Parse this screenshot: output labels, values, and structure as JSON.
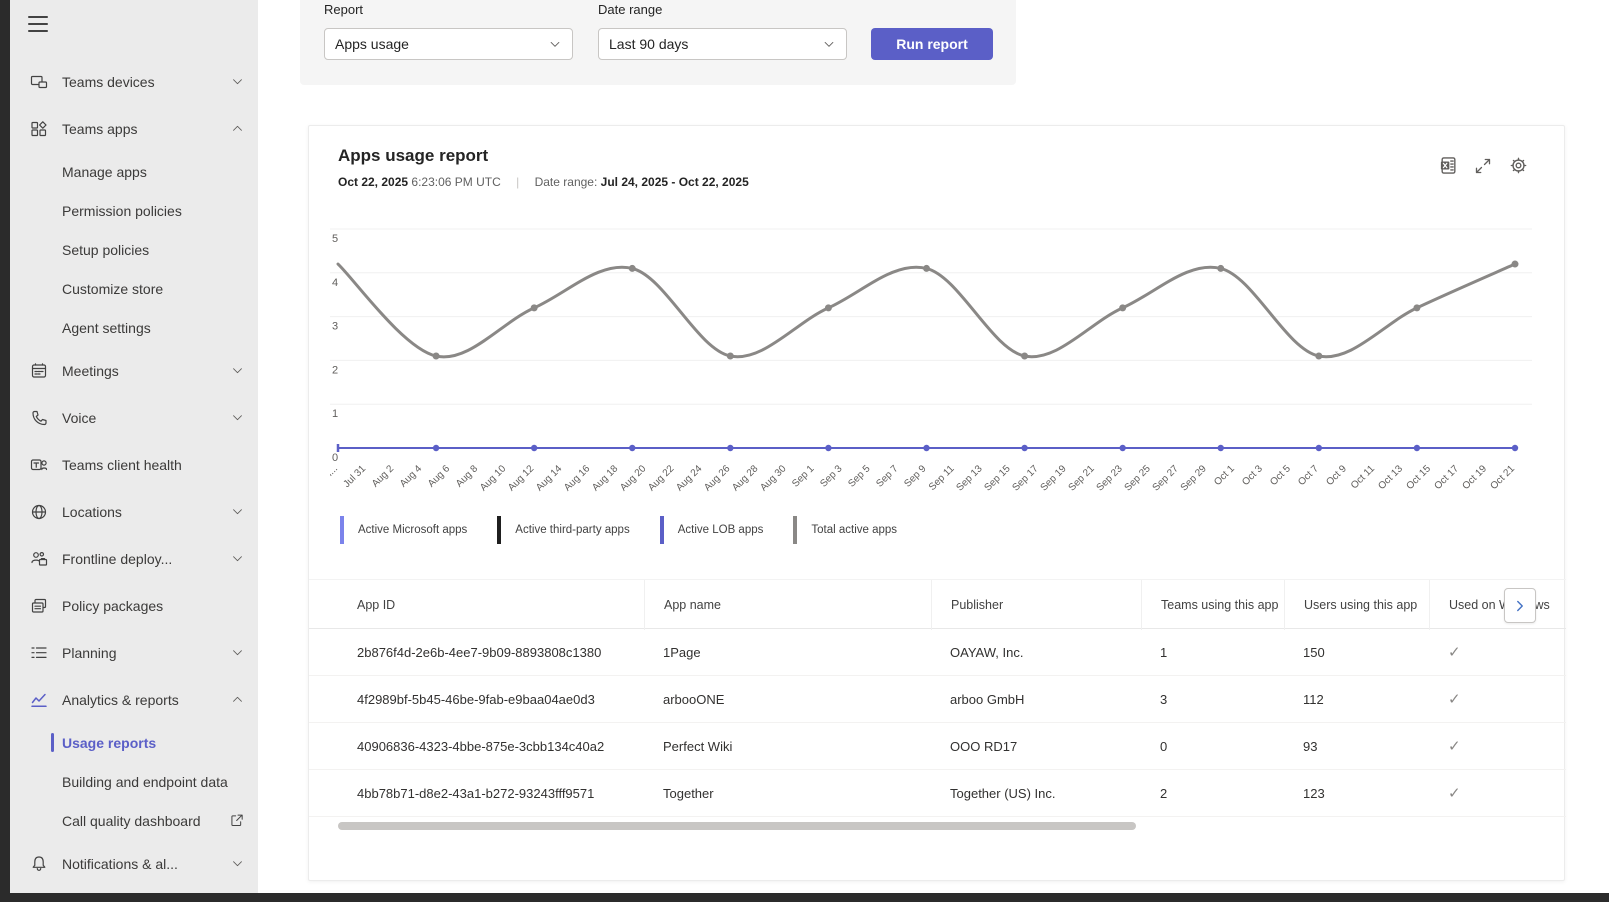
{
  "sidebar": {
    "items": [
      {
        "id": "teams-devices",
        "label": "Teams devices",
        "icon": "devices",
        "chevron": "down"
      },
      {
        "id": "teams-apps",
        "label": "Teams apps",
        "icon": "apps",
        "chevron": "up"
      },
      {
        "id": "manage-apps",
        "label": "Manage apps",
        "sub": true
      },
      {
        "id": "permission-policies",
        "label": "Permission policies",
        "sub": true
      },
      {
        "id": "setup-policies",
        "label": "Setup policies",
        "sub": true
      },
      {
        "id": "customize-store",
        "label": "Customize store",
        "sub": true
      },
      {
        "id": "agent-settings",
        "label": "Agent settings",
        "sub": true
      },
      {
        "id": "meetings",
        "label": "Meetings",
        "icon": "calendar",
        "chevron": "down"
      },
      {
        "id": "voice",
        "label": "Voice",
        "icon": "phone",
        "chevron": "down"
      },
      {
        "id": "teams-client-health",
        "label": "Teams client health",
        "icon": "teams"
      },
      {
        "id": "locations",
        "label": "Locations",
        "icon": "globe",
        "chevron": "down"
      },
      {
        "id": "frontline-deploy",
        "label": "Frontline deploy...",
        "icon": "people",
        "chevron": "down"
      },
      {
        "id": "policy-packages",
        "label": "Policy packages",
        "icon": "layers"
      },
      {
        "id": "planning",
        "label": "Planning",
        "icon": "planning",
        "chevron": "down"
      },
      {
        "id": "analytics-reports",
        "label": "Analytics & reports",
        "icon": "chart",
        "chevron": "up",
        "accent": true
      },
      {
        "id": "usage-reports",
        "label": "Usage reports",
        "sub": true,
        "selected": true
      },
      {
        "id": "building-endpoint-data",
        "label": "Building and endpoint data",
        "sub": true
      },
      {
        "id": "call-quality-dashboard",
        "label": "Call quality dashboard",
        "sub": true,
        "external": true
      },
      {
        "id": "notifications-alerts",
        "label": "Notifications & al...",
        "icon": "bell",
        "chevron": "down"
      }
    ]
  },
  "filters": {
    "report_label": "Report",
    "report_value": "Apps usage",
    "date_range_label": "Date range",
    "date_range_value": "Last 90 days",
    "run_button_label": "Run report"
  },
  "report": {
    "title": "Apps usage report",
    "generated_date": "Oct 22, 2025",
    "generated_time": "6:23:06 PM UTC",
    "date_range_prefix": "Date range:",
    "date_range_value": "Jul 24, 2025 - Oct 22, 2025",
    "toolbar_icons": [
      "excel-export",
      "expand",
      "settings"
    ]
  },
  "chart_data": {
    "type": "line",
    "title": "",
    "xlabel": "",
    "ylabel": "",
    "ylim": [
      0,
      5
    ],
    "y_ticks": [
      0,
      1,
      2,
      3,
      4,
      5
    ],
    "grid": true,
    "legend_position": "bottom",
    "x_tick_labels": [
      "Jul...",
      "Jul 31",
      "Aug 2",
      "Aug 4",
      "Aug 6",
      "Aug 8",
      "Aug 10",
      "Aug 12",
      "Aug 14",
      "Aug 16",
      "Aug 18",
      "Aug 20",
      "Aug 22",
      "Aug 24",
      "Aug 26",
      "Aug 28",
      "Aug 30",
      "Sep 1",
      "Sep 3",
      "Sep 5",
      "Sep 7",
      "Sep 9",
      "Sep 11",
      "Sep 13",
      "Sep 15",
      "Sep 17",
      "Sep 19",
      "Sep 21",
      "Sep 23",
      "Sep 25",
      "Sep 27",
      "Sep 29",
      "Oct 1",
      "Oct 3",
      "Oct 5",
      "Oct 7",
      "Oct 9",
      "Oct 11",
      "Oct 13",
      "Oct 15",
      "Oct 17",
      "Oct 19",
      "Oct 21"
    ],
    "series": [
      {
        "name": "Active Microsoft apps",
        "color": "#7b83eb",
        "values": [
          0,
          0,
          0,
          0,
          0,
          0,
          0,
          0,
          0,
          0,
          0,
          0,
          0
        ]
      },
      {
        "name": "Active third-party apps",
        "color": "#1f1f1f",
        "values": [
          0,
          0,
          0,
          0,
          0,
          0,
          0,
          0,
          0,
          0,
          0,
          0,
          0
        ]
      },
      {
        "name": "Active LOB apps",
        "color": "#5b5fc7",
        "values": [
          0,
          0,
          0,
          0,
          0,
          0,
          0,
          0,
          0,
          0,
          0,
          0,
          0
        ]
      },
      {
        "name": "Total active apps",
        "color": "#8a8886",
        "values": [
          4.2,
          2.1,
          3.2,
          4.1,
          2.1,
          3.2,
          4.1,
          2.1,
          3.2,
          4.1,
          2.1,
          3.2,
          4.2
        ]
      }
    ]
  },
  "table": {
    "columns": [
      "App ID",
      "App name",
      "Publisher",
      "Teams using this app",
      "Users using this app",
      "Used on Windows"
    ],
    "rows": [
      {
        "app_id": "2b876f4d-2e6b-4ee7-9b09-8893808c1380",
        "app_name": "1Page",
        "publisher": "OAYAW, Inc.",
        "teams_using": "1",
        "users_using": "150",
        "used_on_windows": true
      },
      {
        "app_id": "4f2989bf-5b45-46be-9fab-e9baa04ae0d3",
        "app_name": "arbooONE",
        "publisher": "arboo GmbH",
        "teams_using": "3",
        "users_using": "112",
        "used_on_windows": true
      },
      {
        "app_id": "40906836-4323-4bbe-875e-3cbb134c40a2",
        "app_name": "Perfect Wiki",
        "publisher": "OOO RD17",
        "teams_using": "0",
        "users_using": "93",
        "used_on_windows": true
      },
      {
        "app_id": "4bb78b71-d8e2-43a1-b272-93243fff9571",
        "app_name": "Together",
        "publisher": "Together (US) Inc.",
        "teams_using": "2",
        "users_using": "123",
        "used_on_windows": true
      }
    ],
    "check_glyph": "✓"
  },
  "colors": {
    "accent": "#5b5fc7",
    "run_button_bg": "#5b5fc7",
    "chart_total_line": "#8a8886",
    "chart_zero_line": "#5b5fc7",
    "gridline": "#f0f0f0",
    "axis_text": "#605e5c",
    "check": "#8a8886",
    "chevron_button_arrow": "#4472c4"
  }
}
